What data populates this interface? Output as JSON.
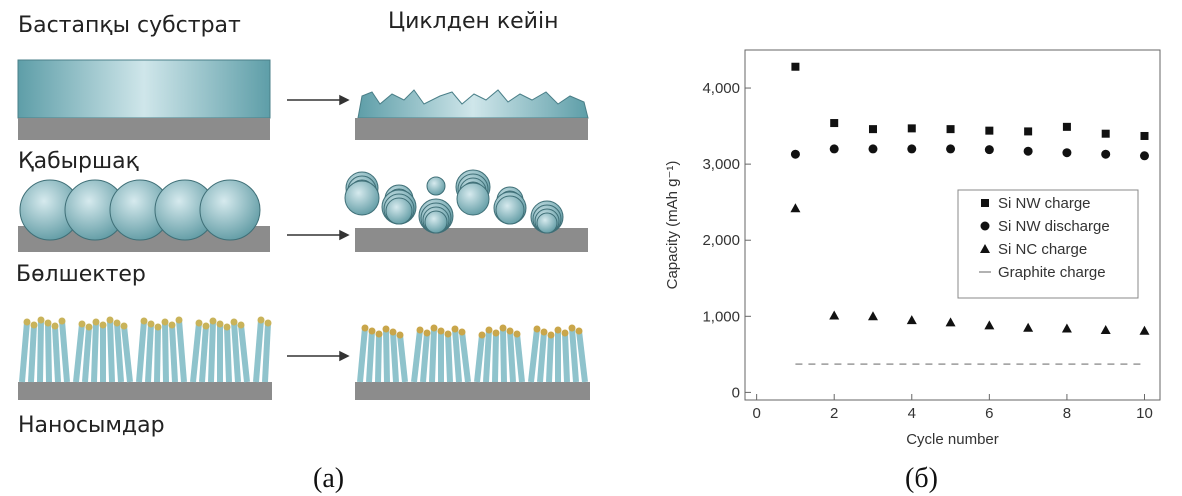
{
  "panel_a": {
    "headers": [
      "Бастапқы субстрат",
      "Циклден кейін"
    ],
    "labels": [
      "Қабыршақ",
      "Бөлшектер",
      "Наносымдар"
    ],
    "caption": "(а)"
  },
  "panel_b_caption": "(б)",
  "chart_data": {
    "type": "scatter",
    "x_label": "Cycle number",
    "y_label": "Capacity (mAh g⁻¹)",
    "x": [
      1,
      2,
      3,
      4,
      5,
      6,
      7,
      8,
      9,
      10
    ],
    "series": [
      {
        "name": "Si NW charge",
        "color": "#111111",
        "marker": "square",
        "values": [
          4280,
          3540,
          3460,
          3470,
          3460,
          3440,
          3430,
          3490,
          3400,
          3370
        ]
      },
      {
        "name": "Si NW discharge",
        "color": "#111111",
        "marker": "circle",
        "values": [
          3130,
          3200,
          3200,
          3200,
          3200,
          3190,
          3170,
          3150,
          3130,
          3110
        ]
      },
      {
        "name": "Si NC charge",
        "color": "#111111",
        "marker": "triangle",
        "values": [
          2420,
          1010,
          1000,
          950,
          920,
          880,
          850,
          840,
          820,
          810
        ]
      },
      {
        "name": "Graphite charge",
        "color": "#999999",
        "marker": "dash",
        "values": [
          372,
          372,
          372,
          372,
          372,
          372,
          372,
          372,
          372,
          372
        ]
      }
    ],
    "xlim": [
      -0.3,
      10.4
    ],
    "ylim": [
      -100,
      4500
    ],
    "xticks": [
      0,
      2,
      4,
      6,
      8,
      10
    ],
    "yticks": [
      0,
      {
        "value": 1000,
        "label": "1,000"
      },
      {
        "value": 2000,
        "label": "2,000"
      },
      {
        "value": 3000,
        "label": "3,000"
      },
      {
        "value": 4000,
        "label": "4,000"
      }
    ],
    "grid": false,
    "legend": "right"
  }
}
